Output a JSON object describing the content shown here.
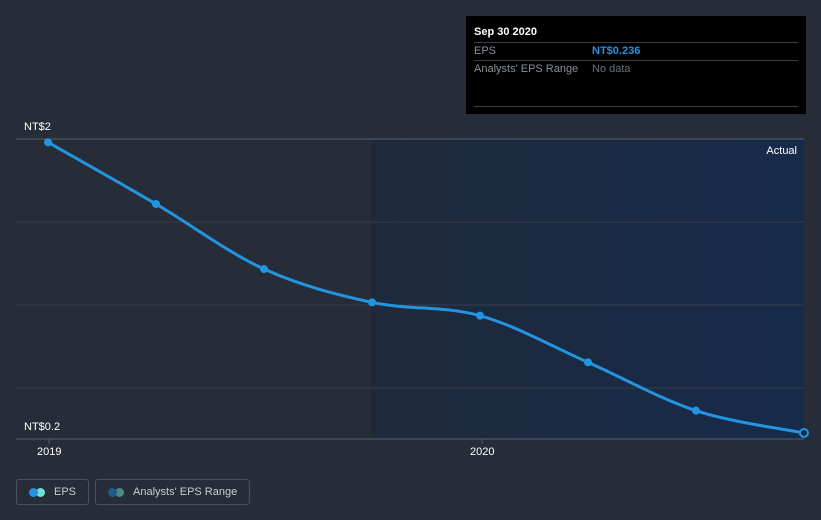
{
  "tooltip": {
    "date": "Sep 30 2020",
    "rows": [
      {
        "label": "EPS",
        "value": "NT$0.236"
      },
      {
        "label": "Analysts' EPS Range",
        "value": "No data"
      }
    ]
  },
  "axis": {
    "y_top_label": "NT$2",
    "y_bottom_label": "NT$0.2",
    "x_labels": [
      "2019",
      "2020"
    ]
  },
  "region_label": "Actual",
  "legend": [
    {
      "label": "EPS",
      "colors": [
        "#2394df",
        "#6ee0d4"
      ]
    },
    {
      "label": "Analysts' EPS Range",
      "colors": [
        "#1e5a8a",
        "#4d8a87"
      ]
    }
  ],
  "colors": {
    "background": "#262c38",
    "line": "#2394df",
    "future_region": "#172a48",
    "gridline": "#3a404c"
  },
  "chart_data": {
    "type": "line",
    "title": "",
    "xlabel": "",
    "ylabel": "EPS",
    "x": [
      "Dec 2018",
      "Mar 2019",
      "Jun 2019",
      "Sep 2019",
      "Dec 2019",
      "Mar 2020",
      "Jun 2020",
      "Sep 2020"
    ],
    "series": [
      {
        "name": "EPS",
        "values": [
          1.98,
          1.61,
          1.22,
          1.02,
          0.94,
          0.66,
          0.37,
          0.236
        ]
      }
    ],
    "ylim": [
      0.2,
      2
    ],
    "y_tick_labels": [
      "NT$0.2",
      "NT$2"
    ],
    "x_tick_labels": [
      "2019",
      "2020"
    ],
    "grid": true,
    "legend_position": "bottom-left",
    "annotations": [
      "Actual"
    ],
    "tooltip": {
      "date": "Sep 30 2020",
      "EPS": "NT$0.236",
      "Analysts' EPS Range": "No data"
    }
  }
}
